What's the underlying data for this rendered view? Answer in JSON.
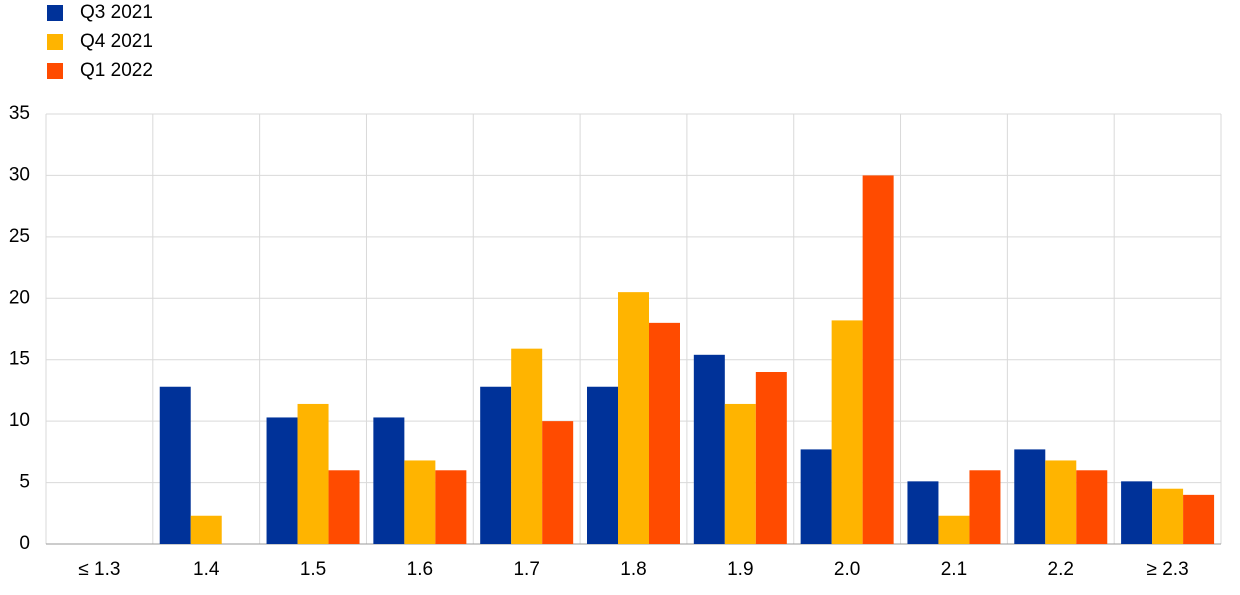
{
  "chart_data": {
    "type": "bar",
    "categories": [
      "≤ 1.3",
      "1.4",
      "1.5",
      "1.6",
      "1.7",
      "1.8",
      "1.9",
      "2.0",
      "2.1",
      "2.2",
      "≥ 2.3"
    ],
    "series": [
      {
        "name": "Q3 2021",
        "color": "#003299",
        "values": [
          0,
          12.8,
          10.3,
          10.3,
          12.8,
          12.8,
          15.4,
          7.7,
          5.1,
          7.7,
          5.1
        ]
      },
      {
        "name": "Q4 2021",
        "color": "#ffb400",
        "values": [
          0,
          2.3,
          11.4,
          6.8,
          15.9,
          20.5,
          11.4,
          18.2,
          2.3,
          6.8,
          4.5
        ]
      },
      {
        "name": "Q1 2022",
        "color": "#ff4b00",
        "values": [
          0,
          0,
          6,
          6,
          10,
          18,
          14,
          30,
          6,
          6,
          4
        ]
      }
    ],
    "ylim": [
      0,
      35
    ],
    "yticks": [
      0,
      5,
      10,
      15,
      20,
      25,
      30,
      35
    ],
    "grid": true,
    "legend": "top-left"
  }
}
